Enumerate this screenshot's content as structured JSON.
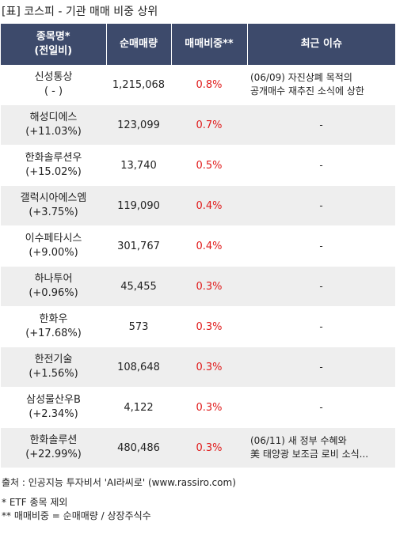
{
  "title": "[표] 코스피 - 기관 매매 비중 상위",
  "headers": {
    "name_line1": "종목명*",
    "name_line2": "(전일비)",
    "volume": "순매매량",
    "ratio": "매매비중**",
    "issue": "최근 이슈"
  },
  "rows": [
    {
      "name": "신성통상",
      "change": "( - )",
      "volume": "1,215,068",
      "ratio": "0.8%",
      "issue1": "(06/09) 자진상폐 목적의",
      "issue2": "공개매수 재추진 소식에 상한"
    },
    {
      "name": "해성디에스",
      "change": "(+11.03%)",
      "volume": "123,099",
      "ratio": "0.7%",
      "issue1": "-",
      "issue2": ""
    },
    {
      "name": "한화솔루션우",
      "change": "(+15.02%)",
      "volume": "13,740",
      "ratio": "0.5%",
      "issue1": "-",
      "issue2": ""
    },
    {
      "name": "갤럭시아에스엠",
      "change": "(+3.75%)",
      "volume": "119,090",
      "ratio": "0.4%",
      "issue1": "-",
      "issue2": ""
    },
    {
      "name": "이수페타시스",
      "change": "(+9.00%)",
      "volume": "301,767",
      "ratio": "0.4%",
      "issue1": "-",
      "issue2": ""
    },
    {
      "name": "하나투어",
      "change": "(+0.96%)",
      "volume": "45,455",
      "ratio": "0.3%",
      "issue1": "-",
      "issue2": ""
    },
    {
      "name": "한화우",
      "change": "(+17.68%)",
      "volume": "573",
      "ratio": "0.3%",
      "issue1": "-",
      "issue2": ""
    },
    {
      "name": "한전기술",
      "change": "(+1.56%)",
      "volume": "108,648",
      "ratio": "0.3%",
      "issue1": "-",
      "issue2": ""
    },
    {
      "name": "삼성물산우B",
      "change": "(+2.34%)",
      "volume": "4,122",
      "ratio": "0.3%",
      "issue1": "-",
      "issue2": ""
    },
    {
      "name": "한화솔루션",
      "change": "(+22.99%)",
      "volume": "480,486",
      "ratio": "0.3%",
      "issue1": "(06/11) 새 정부 수혜와",
      "issue2": "美 태양광 보조금 로비 소식..."
    }
  ],
  "source": "출처 : 인공지능 투자비서 'AI라씨로' (www.rassiro.com)",
  "note1": "* ETF 종목 제외",
  "note2": "** 매매비중 = 순매매량 / 상장주식수"
}
